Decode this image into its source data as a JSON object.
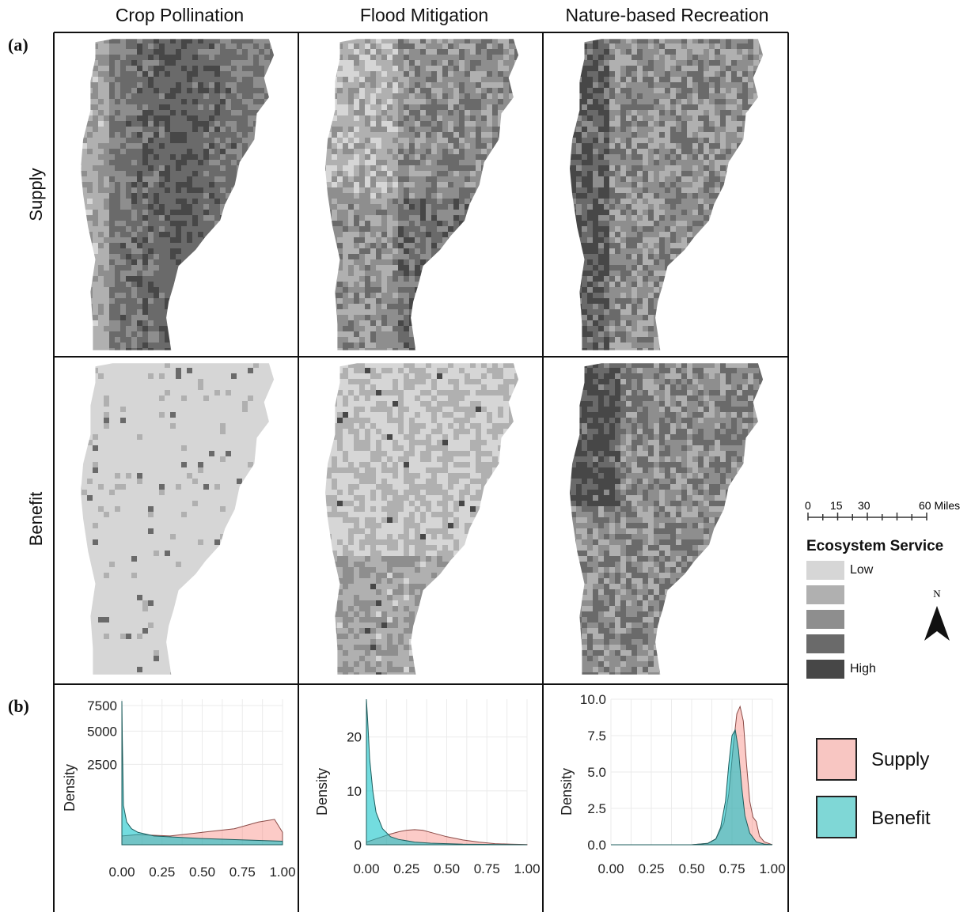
{
  "columns": [
    "Crop Pollination",
    "Flood Mitigation",
    "Nature-based Recreation"
  ],
  "rows": [
    "Supply",
    "Benefit"
  ],
  "panel_labels": {
    "a": "(a)",
    "b": "(b)"
  },
  "scale_bar": {
    "ticks": [
      "0",
      "15",
      "30",
      "60 Miles"
    ]
  },
  "legend": {
    "title": "Ecosystem Service",
    "low_label": "Low",
    "high_label": "High",
    "colors": [
      "#d6d6d6",
      "#b0b0b0",
      "#8e8e8e",
      "#6a6a6a",
      "#474747"
    ]
  },
  "north_label": "N",
  "density_legend": [
    {
      "label": "Supply",
      "color": "#f8c6c2"
    },
    {
      "label": "Benefit",
      "color": "#7fd7d6"
    }
  ],
  "chart_data": [
    {
      "type": "area",
      "title": "Crop Pollination",
      "ylabel": "Density",
      "xlim": [
        0,
        1
      ],
      "x_ticks": [
        "0.00",
        "0.25",
        "0.50",
        "0.75",
        "1.00"
      ],
      "y_ticks": [
        "2500",
        "5000",
        "7500"
      ],
      "series": [
        {
          "name": "Supply",
          "x": [
            0,
            0.1,
            0.3,
            0.5,
            0.7,
            0.85,
            0.95,
            1.0
          ],
          "y": [
            30,
            40,
            30,
            60,
            100,
            200,
            250,
            60
          ]
        },
        {
          "name": "Benefit",
          "x": [
            0,
            0.003,
            0.01,
            0.03,
            0.06,
            0.1,
            0.2,
            0.5,
            1.0
          ],
          "y": [
            8000,
            4300,
            600,
            200,
            100,
            60,
            30,
            15,
            5
          ]
        }
      ]
    },
    {
      "type": "area",
      "title": "Flood Mitigation",
      "ylabel": "Density",
      "xlim": [
        0,
        1
      ],
      "ylim": [
        0,
        27
      ],
      "x_ticks": [
        "0.00",
        "0.25",
        "0.50",
        "0.75",
        "1.00"
      ],
      "y_ticks": [
        "0",
        "10",
        "20"
      ],
      "series": [
        {
          "name": "Supply",
          "x": [
            0,
            0.05,
            0.1,
            0.15,
            0.2,
            0.25,
            0.3,
            0.35,
            0.4,
            0.5,
            0.6,
            0.7,
            0.8,
            0.9,
            1.0
          ],
          "y": [
            0.5,
            1.0,
            1.5,
            2.0,
            2.4,
            2.7,
            2.8,
            2.7,
            2.3,
            1.5,
            0.9,
            0.5,
            0.2,
            0.1,
            0.05
          ]
        },
        {
          "name": "Benefit",
          "x": [
            0,
            0.01,
            0.02,
            0.04,
            0.06,
            0.1,
            0.15,
            0.2,
            0.3,
            0.4,
            0.6,
            1.0
          ],
          "y": [
            27,
            22,
            16,
            10,
            6,
            3,
            1.5,
            1.0,
            0.5,
            0.3,
            0.1,
            0
          ]
        }
      ]
    },
    {
      "type": "area",
      "title": "Nature-based Recreation",
      "ylabel": "Density",
      "xlim": [
        0,
        1
      ],
      "ylim": [
        0,
        10
      ],
      "x_ticks": [
        "0.00",
        "0.25",
        "0.50",
        "0.75",
        "1.00"
      ],
      "y_ticks": [
        "0.0",
        "2.5",
        "5.0",
        "7.5",
        "10.0"
      ],
      "series": [
        {
          "name": "Supply",
          "x": [
            0,
            0.5,
            0.6,
            0.65,
            0.7,
            0.73,
            0.76,
            0.78,
            0.8,
            0.82,
            0.84,
            0.86,
            0.88,
            0.9,
            0.92,
            0.95,
            1.0
          ],
          "y": [
            0,
            0,
            0.1,
            0.4,
            1.5,
            3.5,
            7.0,
            9.0,
            9.5,
            8.5,
            5.5,
            3.0,
            1.9,
            1.6,
            0.6,
            0.2,
            0
          ]
        },
        {
          "name": "Benefit",
          "x": [
            0,
            0.5,
            0.6,
            0.65,
            0.68,
            0.71,
            0.73,
            0.75,
            0.77,
            0.79,
            0.81,
            0.83,
            0.86,
            0.9,
            0.95,
            1.0
          ],
          "y": [
            0,
            0,
            0.1,
            0.4,
            1.2,
            3.0,
            5.5,
            7.5,
            7.9,
            6.5,
            4.0,
            2.0,
            0.8,
            0.2,
            0.05,
            0
          ]
        }
      ]
    }
  ]
}
